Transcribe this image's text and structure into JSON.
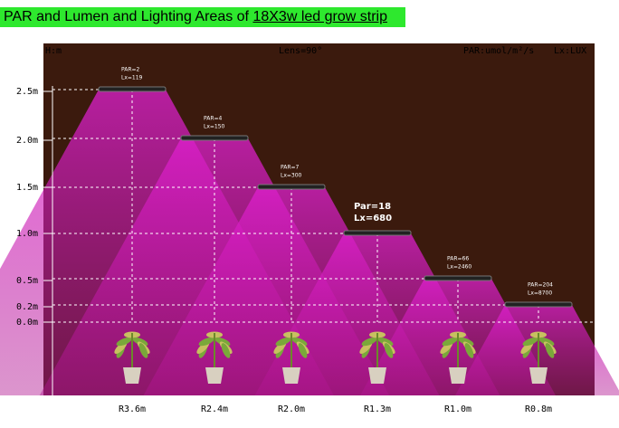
{
  "title": {
    "text": "PAR and Lumen and Lighting Areas of ",
    "link": "18X3w led grow strip"
  },
  "header": {
    "height_unit": "H:m",
    "lens": "Lens=90°",
    "par_unit": "PAR:umol/m²/s",
    "lux_unit": "Lx:LUX"
  },
  "heights": [
    "2.5m",
    "2.0m",
    "1.5m",
    "1.0m",
    "0.5m",
    "0.2m",
    "0.0m"
  ],
  "lamps": [
    {
      "par": "PAR=2",
      "lux": "Lx=119"
    },
    {
      "par": "PAR=4",
      "lux": "Lx=150"
    },
    {
      "par": "PAR=7",
      "lux": "Lx=300"
    },
    {
      "par": "Par=18",
      "lux": "Lx=680"
    },
    {
      "par": "PAR=66",
      "lux": "Lx=2460"
    },
    {
      "par": "PAR=204",
      "lux": "Lx=8700"
    }
  ],
  "radii": [
    "R3.6m",
    "R2.4m",
    "R2.0m",
    "R1.3m",
    "R1.0m",
    "R0.8m"
  ]
}
